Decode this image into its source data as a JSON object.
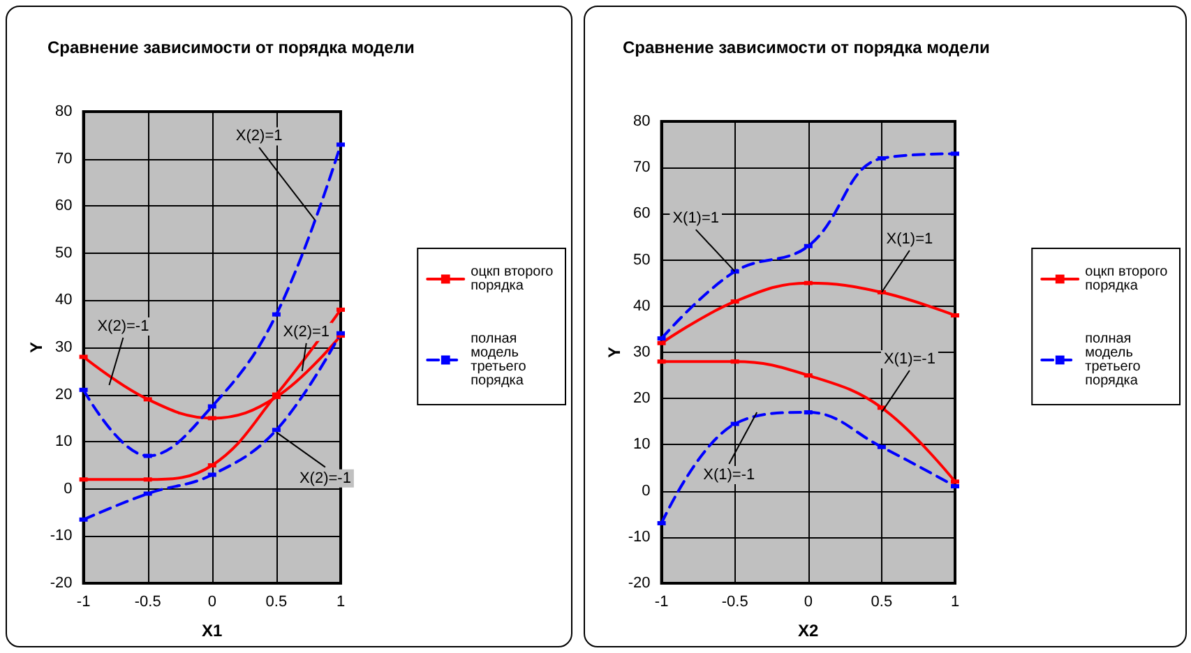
{
  "chart_data": [
    {
      "type": "line",
      "title": "Сравнение зависимости от порядка модели",
      "xlabel": "X1",
      "ylabel": "Y",
      "x": [
        -1,
        -0.5,
        0,
        0.5,
        1
      ],
      "series": [
        {
          "name": "оцкп второго порядка",
          "color": "#ff0000",
          "line_style": "solid",
          "values": [
            28,
            19,
            15,
            19.5,
            32.5
          ]
        },
        {
          "color": "#ff0000",
          "line_style": "solid",
          "values": [
            2,
            2,
            5,
            20,
            38
          ]
        },
        {
          "name": "полная модель третьего порядка",
          "color": "#0000ff",
          "line_style": "dashed",
          "values": [
            21,
            7,
            17.5,
            37,
            73
          ]
        },
        {
          "color": "#0000ff",
          "line_style": "dashed",
          "values": [
            -6.5,
            -1,
            3,
            12.5,
            33
          ]
        }
      ],
      "annotations": [
        {
          "text": "X(2)=1",
          "x": 0.8,
          "y": 57
        },
        {
          "text": "X(2)=1",
          "x": 0.7,
          "y": 25
        },
        {
          "text": "X(2)=-1",
          "x": -0.8,
          "y": 22
        },
        {
          "text": "X(2)=-1",
          "x": 0.5,
          "y": 12
        }
      ],
      "xlim": [
        -1,
        1
      ],
      "xticks": [
        -1,
        -0.5,
        0,
        0.5,
        1
      ],
      "ylim": [
        -20,
        80
      ],
      "yticks": [
        -20,
        -10,
        0,
        10,
        20,
        30,
        40,
        50,
        60,
        70,
        80
      ],
      "grid": true,
      "legend": "right",
      "marker": "square"
    },
    {
      "type": "line",
      "title": "Сравнение зависимости от порядка модели",
      "xlabel": "X2",
      "ylabel": "Y",
      "x": [
        -1,
        -0.5,
        0,
        0.5,
        1
      ],
      "series": [
        {
          "name": "оцкп второго порядка",
          "color": "#ff0000",
          "line_style": "solid",
          "values": [
            32,
            41,
            45,
            43,
            38
          ]
        },
        {
          "color": "#ff0000",
          "line_style": "solid",
          "values": [
            28,
            28,
            25,
            18,
            2
          ]
        },
        {
          "name": "полная модель третьего порядка",
          "color": "#0000ff",
          "line_style": "dashed",
          "values": [
            33,
            47.5,
            53,
            72,
            73
          ]
        },
        {
          "color": "#0000ff",
          "line_style": "dashed",
          "values": [
            -7,
            14.5,
            17,
            9.5,
            1
          ]
        }
      ],
      "annotations": [
        {
          "text": "X(1)=1",
          "x": -0.5,
          "y": 47.5
        },
        {
          "text": "X(1)=1",
          "x": 0.5,
          "y": 43
        },
        {
          "text": "X(1)=-1",
          "x": 0.5,
          "y": 17
        },
        {
          "text": "X(1)=-1",
          "x": -0.35,
          "y": 17
        }
      ],
      "xlim": [
        -1,
        1
      ],
      "xticks": [
        -1,
        -0.5,
        0,
        0.5,
        1
      ],
      "ylim": [
        -20,
        80
      ],
      "yticks": [
        -20,
        -10,
        0,
        10,
        20,
        30,
        40,
        50,
        60,
        70,
        80
      ],
      "grid": true,
      "legend": "right",
      "marker": "square"
    }
  ]
}
